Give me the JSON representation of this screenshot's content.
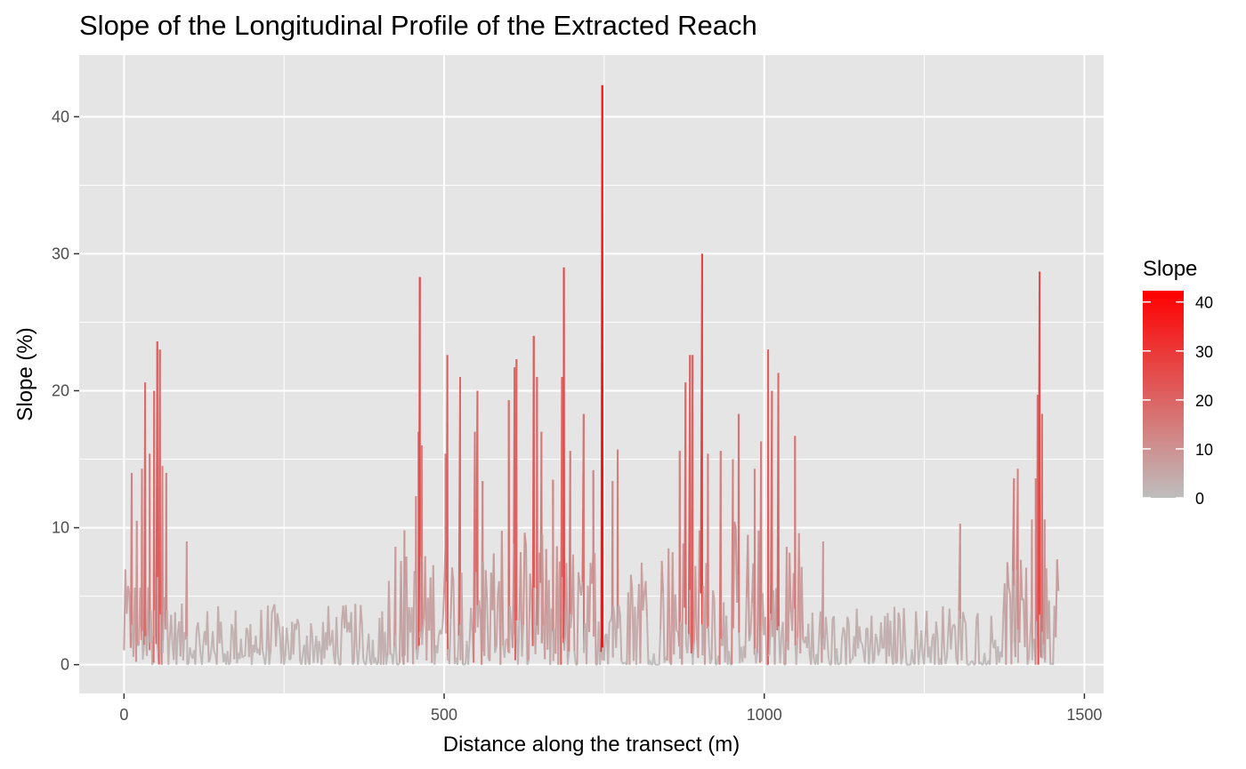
{
  "chart_data": {
    "type": "line",
    "title": "Slope of the Longitudinal Profile of the Extracted Reach",
    "xlabel": "Distance along the transect (m)",
    "ylabel": "Slope (%)",
    "xlim": [
      -70,
      1530
    ],
    "ylim": [
      -2.1,
      44.5
    ],
    "x_ticks": [
      0,
      500,
      1000,
      1500
    ],
    "x_tick_labels": [
      "0",
      "500",
      "1000",
      "1500"
    ],
    "y_ticks": [
      0,
      10,
      20,
      30,
      40
    ],
    "y_tick_labels": [
      "0",
      "10",
      "20",
      "30",
      "40"
    ],
    "grid": true,
    "legend": {
      "title": "Slope",
      "position": "right",
      "ticks": [
        0,
        10,
        20,
        30,
        40
      ],
      "tick_labels": [
        "0",
        "10",
        "20",
        "30",
        "40"
      ],
      "range": [
        0,
        42.3
      ]
    },
    "colors": {
      "low": "#bebebe",
      "high": "#ff0000",
      "panel_background": "#e5e5e5",
      "grid": "#ffffff"
    },
    "x_extent": [
      0,
      1460
    ],
    "peaks": [
      {
        "x": 12,
        "y": 14.0
      },
      {
        "x": 20,
        "y": 10.5
      },
      {
        "x": 28,
        "y": 14.3
      },
      {
        "x": 33,
        "y": 20.6
      },
      {
        "x": 40,
        "y": 15.4
      },
      {
        "x": 47,
        "y": 20.0
      },
      {
        "x": 52,
        "y": 23.6
      },
      {
        "x": 56,
        "y": 23.0
      },
      {
        "x": 60,
        "y": 14.5
      },
      {
        "x": 66,
        "y": 14.0
      },
      {
        "x": 98,
        "y": 9.0
      },
      {
        "x": 424,
        "y": 8.6
      },
      {
        "x": 438,
        "y": 9.8
      },
      {
        "x": 456,
        "y": 12.3
      },
      {
        "x": 460,
        "y": 17.0
      },
      {
        "x": 462,
        "y": 28.3
      },
      {
        "x": 465,
        "y": 16.0
      },
      {
        "x": 502,
        "y": 15.4
      },
      {
        "x": 505,
        "y": 22.6
      },
      {
        "x": 525,
        "y": 21.0
      },
      {
        "x": 548,
        "y": 17.0
      },
      {
        "x": 552,
        "y": 20.0
      },
      {
        "x": 560,
        "y": 13.4
      },
      {
        "x": 601,
        "y": 19.3
      },
      {
        "x": 610,
        "y": 21.7
      },
      {
        "x": 613,
        "y": 22.3
      },
      {
        "x": 640,
        "y": 24.0
      },
      {
        "x": 645,
        "y": 21.0
      },
      {
        "x": 652,
        "y": 17.0
      },
      {
        "x": 670,
        "y": 13.5
      },
      {
        "x": 684,
        "y": 21.0
      },
      {
        "x": 687,
        "y": 29.0
      },
      {
        "x": 697,
        "y": 15.6
      },
      {
        "x": 718,
        "y": 18.3
      },
      {
        "x": 733,
        "y": 14.2
      },
      {
        "x": 747,
        "y": 42.3
      },
      {
        "x": 763,
        "y": 13.4
      },
      {
        "x": 771,
        "y": 15.7
      },
      {
        "x": 868,
        "y": 15.6
      },
      {
        "x": 877,
        "y": 20.6
      },
      {
        "x": 884,
        "y": 22.6
      },
      {
        "x": 888,
        "y": 22.6
      },
      {
        "x": 903,
        "y": 30.0
      },
      {
        "x": 912,
        "y": 15.4
      },
      {
        "x": 932,
        "y": 15.6
      },
      {
        "x": 951,
        "y": 15.0
      },
      {
        "x": 960,
        "y": 18.3
      },
      {
        "x": 985,
        "y": 14.3
      },
      {
        "x": 995,
        "y": 16.3
      },
      {
        "x": 1006,
        "y": 23.0
      },
      {
        "x": 1012,
        "y": 20.0
      },
      {
        "x": 1022,
        "y": 21.3
      },
      {
        "x": 1035,
        "y": 8.6
      },
      {
        "x": 1048,
        "y": 16.7
      },
      {
        "x": 1092,
        "y": 9.0
      },
      {
        "x": 1306,
        "y": 10.3
      },
      {
        "x": 1390,
        "y": 13.6
      },
      {
        "x": 1396,
        "y": 14.3
      },
      {
        "x": 1418,
        "y": 10.6
      },
      {
        "x": 1424,
        "y": 13.6
      },
      {
        "x": 1427,
        "y": 19.7
      },
      {
        "x": 1430,
        "y": 28.7
      },
      {
        "x": 1434,
        "y": 18.3
      },
      {
        "x": 1438,
        "y": 10.6
      }
    ]
  }
}
